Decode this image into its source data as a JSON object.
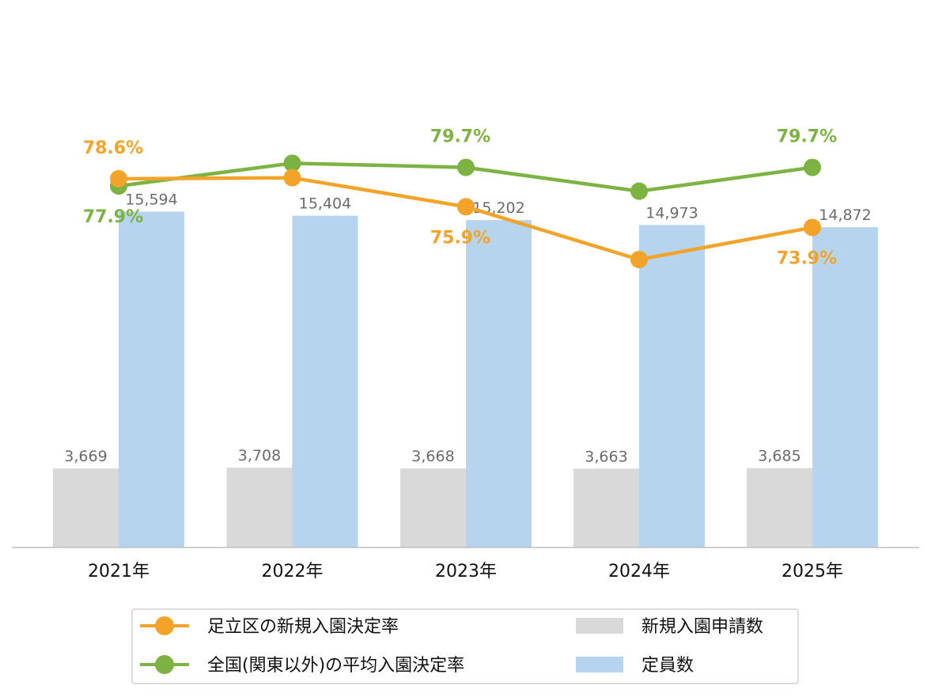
{
  "chart_data": {
    "type": "bar",
    "categories": [
      "2021年",
      "2022年",
      "2023年",
      "2024年",
      "2025年"
    ],
    "bars": [
      {
        "name": "新規入園申請数",
        "values": [
          3669,
          3708,
          3668,
          3663,
          3685
        ],
        "labels": [
          "3,669",
          "3,708",
          "3,668",
          "3,663",
          "3,685"
        ],
        "color": "#d9d9d9"
      },
      {
        "name": "定員数",
        "values": [
          15594,
          15404,
          15202,
          14973,
          14872
        ],
        "labels": [
          "15,594",
          "15,404",
          "15,202",
          "14,973",
          "14,872"
        ],
        "color": "#b7d4ee"
      }
    ],
    "bar_ylim": [
      0,
      18000
    ],
    "lines": [
      {
        "name": "足立区の新規入園決定率",
        "values": [
          78.6,
          78.7,
          75.9,
          70.8,
          73.9
        ],
        "labels": [
          "78.6%",
          "",
          "75.9%",
          "",
          "73.9%"
        ],
        "color": "#f2a32a"
      },
      {
        "name": "全国(関東以外)の平均入園決定率",
        "values": [
          77.9,
          80.1,
          79.7,
          77.4,
          79.7
        ],
        "labels": [
          "77.9%",
          "",
          "79.7%",
          "",
          "79.7%"
        ],
        "color": "#7db342"
      }
    ],
    "line_ylim": [
      43,
      87
    ],
    "legend": "bottom",
    "grid": false
  }
}
